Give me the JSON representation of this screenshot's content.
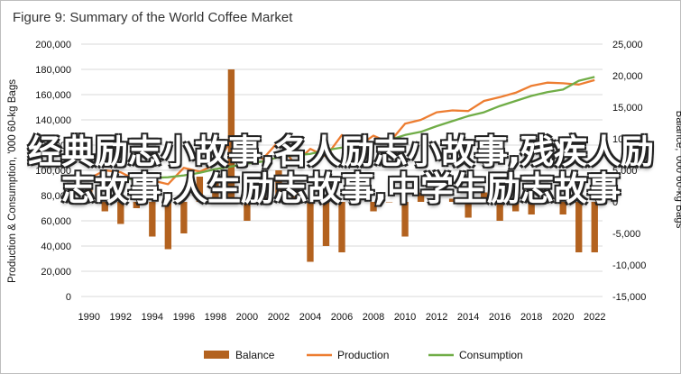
{
  "overlay_text": "经典励志小故事,名人励志小故事,残疾人励志故事,人生励志故事,中学生励志故事",
  "chart_data": {
    "type": "bar",
    "title": "Figure 9: Summary of the World Coffee Market",
    "ylabel_left": "Production & Consumption, '000 60-kg Bags",
    "ylabel_right": "Balance, '000 60-kg Bags",
    "ylim_left": [
      0,
      200000
    ],
    "ylim_right": [
      -15000,
      25000
    ],
    "left_ticks": [
      "0",
      "20,000",
      "40,000",
      "60,000",
      "80,000",
      "100,000",
      "120,000",
      "140,000",
      "160,000",
      "180,000",
      "200,000"
    ],
    "right_ticks": [
      "-15,000",
      "-10,000",
      "-5,000",
      "0",
      "5,000",
      "10,000",
      "15,000",
      "20,000",
      "25,000"
    ],
    "x_tick_labels": [
      "1990",
      "1992",
      "1994",
      "1996",
      "1998",
      "2000",
      "2002",
      "2004",
      "2006",
      "2008",
      "2010",
      "2012",
      "2014",
      "2016",
      "2018",
      "2020",
      "2022"
    ],
    "years": [
      1990,
      1991,
      1992,
      1993,
      1994,
      1995,
      1996,
      1997,
      1998,
      1999,
      2000,
      2001,
      2002,
      2003,
      2004,
      2005,
      2006,
      2007,
      2008,
      2009,
      2010,
      2011,
      2012,
      2013,
      2014,
      2015,
      2016,
      2017,
      2018,
      2019,
      2020,
      2021,
      2022
    ],
    "grid": true,
    "legend_position": "bottom",
    "colors": {
      "balance": "#b3621f",
      "production": "#ed7d31",
      "consumption": "#70ad47",
      "grid": "#d9d9d9"
    },
    "series": [
      {
        "name": "Balance",
        "type": "bar",
        "axis": "right",
        "values": [
          2000,
          -1500,
          -3500,
          -1000,
          -5500,
          -7500,
          -5000,
          4000,
          3000,
          21000,
          -3000,
          1000,
          5000,
          2000,
          -9500,
          -7000,
          -8000,
          1000,
          -1500,
          0,
          -5500,
          1500,
          3000,
          500,
          -2500,
          1500,
          -3000,
          -1500,
          -2000,
          500,
          -2000,
          -8000,
          -8000
        ]
      },
      {
        "name": "Production",
        "type": "line",
        "axis": "left",
        "values": [
          93500,
          100000,
          98500,
          92000,
          92000,
          89000,
          102000,
          99000,
          104500,
          124000,
          116000,
          109000,
          123000,
          105000,
          117000,
          111000,
          128000,
          118500,
          127500,
          122000,
          137000,
          140000,
          146000,
          147500,
          147000,
          155000,
          158000,
          161500,
          167000,
          169500,
          169000,
          168000,
          171500
        ]
      },
      {
        "name": "Consumption",
        "type": "line",
        "axis": "left",
        "values": [
          92500,
          94000,
          93500,
          93000,
          94000,
          94500,
          96000,
          98000,
          101000,
          103000,
          105500,
          107000,
          110500,
          112000,
          113000,
          116000,
          118000,
          120500,
          121500,
          124000,
          128000,
          130500,
          135000,
          139000,
          143000,
          146000,
          151000,
          155000,
          159000,
          162000,
          164000,
          171000,
          174000
        ]
      }
    ]
  }
}
